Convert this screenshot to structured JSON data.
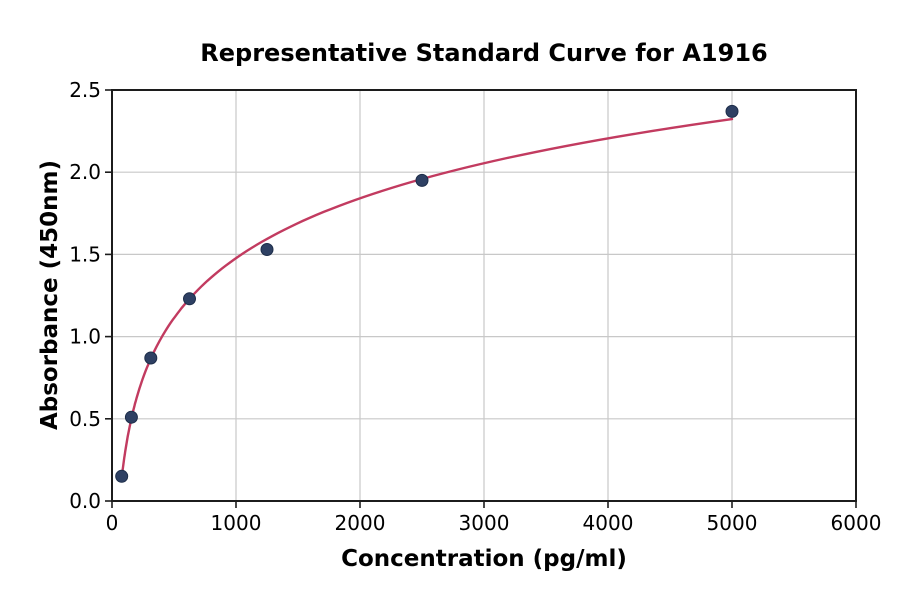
{
  "colors": {
    "background": "#ffffff",
    "curve": "#c23b60",
    "marker": "#2e4063",
    "marker_edge": "#1d2d49",
    "grid": "#c8c8c8",
    "spine": "#1c1c1c",
    "text": "#000000"
  },
  "chart_data": {
    "type": "scatter",
    "title": "Representative Standard Curve for A1916",
    "xlabel": "Concentration (pg/ml)",
    "ylabel": "Absorbance (450nm)",
    "x": [
      78.13,
      156.25,
      312.5,
      625,
      1250,
      2500,
      5000
    ],
    "y": [
      0.15,
      0.51,
      0.87,
      1.23,
      1.53,
      1.95,
      2.37
    ],
    "series": [
      {
        "name": "standards",
        "style": "points",
        "values_note": "see x/y arrays"
      },
      {
        "name": "fit-curve",
        "style": "logarithmic-fit-line",
        "range": [
          78.13,
          5000
        ]
      }
    ],
    "xlim": [
      0,
      6000
    ],
    "ylim": [
      0,
      2.5
    ],
    "xticks": [
      0,
      1000,
      2000,
      3000,
      4000,
      5000,
      6000
    ],
    "xtick_labels": [
      "0",
      "1000",
      "2000",
      "3000",
      "4000",
      "5000",
      "6000"
    ],
    "yticks": [
      0,
      0.5,
      1.0,
      1.5,
      2.0,
      2.5
    ],
    "ytick_labels": [
      "0.0",
      "0.5",
      "1.0",
      "1.5",
      "2.0",
      "2.5"
    ],
    "grid": true,
    "legend": "none",
    "fit": "logarithmic"
  }
}
